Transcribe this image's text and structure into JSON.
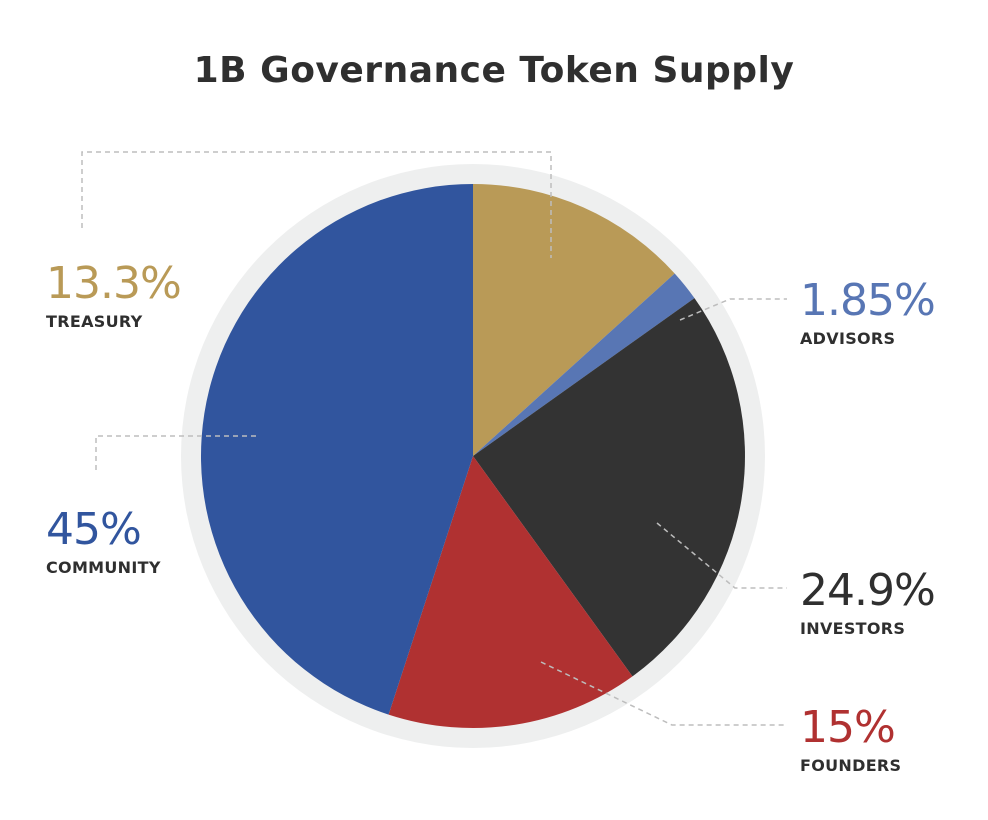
{
  "title": "1B Governance Token Supply",
  "chart_data": {
    "type": "pie",
    "title": "1B Governance Token Supply",
    "slices": [
      {
        "label": "TREASURY",
        "value": 13.3,
        "display": "13.3%",
        "color": "#b99a57"
      },
      {
        "label": "ADVISORS",
        "value": 1.85,
        "display": "1.85%",
        "color": "#5876b4"
      },
      {
        "label": "INVESTORS",
        "value": 24.9,
        "display": "24.9%",
        "color": "#333333"
      },
      {
        "label": "FOUNDERS",
        "value": 15,
        "display": "15%",
        "color": "#b03131"
      },
      {
        "label": "COMMUNITY",
        "value": 45,
        "display": "45%",
        "color": "#31559e"
      }
    ],
    "start": "12 o'clock",
    "direction": "clockwise",
    "legend": "none",
    "callouts": "dashed leader lines"
  }
}
